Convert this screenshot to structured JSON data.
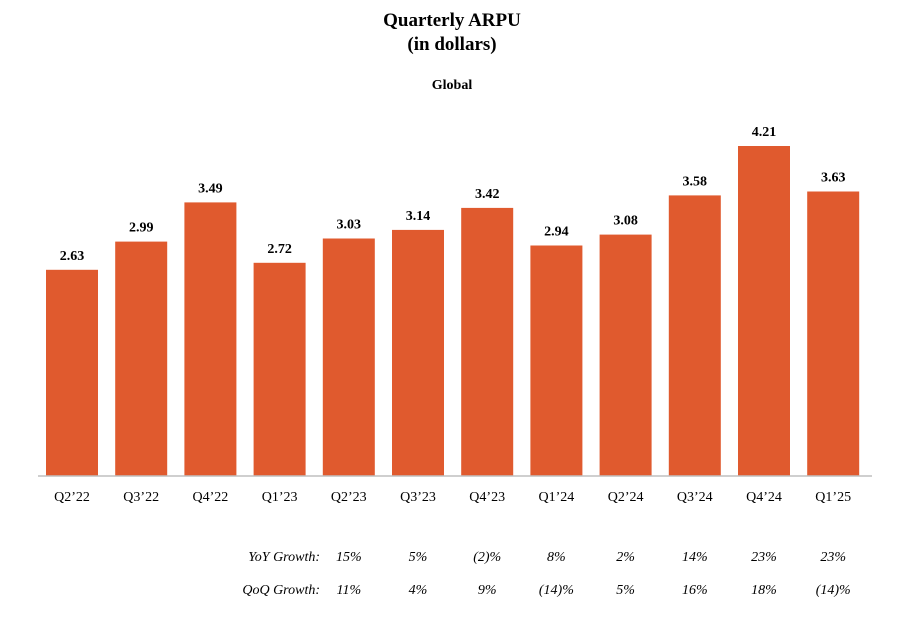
{
  "chart_data": {
    "type": "bar",
    "title": "Quarterly ARPU",
    "title_line2": "(in dollars)",
    "subtitle": "Global",
    "categories": [
      "Q2’22",
      "Q3’22",
      "Q4’22",
      "Q1’23",
      "Q2’23",
      "Q3’23",
      "Q4’23",
      "Q1’24",
      "Q2’24",
      "Q3’24",
      "Q4’24",
      "Q1’25"
    ],
    "values": [
      2.63,
      2.99,
      3.49,
      2.72,
      3.03,
      3.14,
      3.42,
      2.94,
      3.08,
      3.58,
      4.21,
      3.63
    ],
    "value_labels": [
      "2.63",
      "2.99",
      "3.49",
      "2.72",
      "3.03",
      "3.14",
      "3.42",
      "2.94",
      "3.08",
      "3.58",
      "4.21",
      "3.63"
    ],
    "ylim": [
      0,
      4.21
    ],
    "grid": false,
    "legend": "none",
    "bar_color": "#E05A2E",
    "yoy_growth": {
      "label": "YoY Growth:",
      "values": [
        "15%",
        "5%",
        "(2)%",
        "8%",
        "2%",
        "14%",
        "23%",
        "23%"
      ]
    },
    "qoq_growth": {
      "label": "QoQ Growth:",
      "values": [
        "11%",
        "4%",
        "9%",
        "(14)%",
        "5%",
        "16%",
        "18%",
        "(14)%"
      ]
    }
  }
}
